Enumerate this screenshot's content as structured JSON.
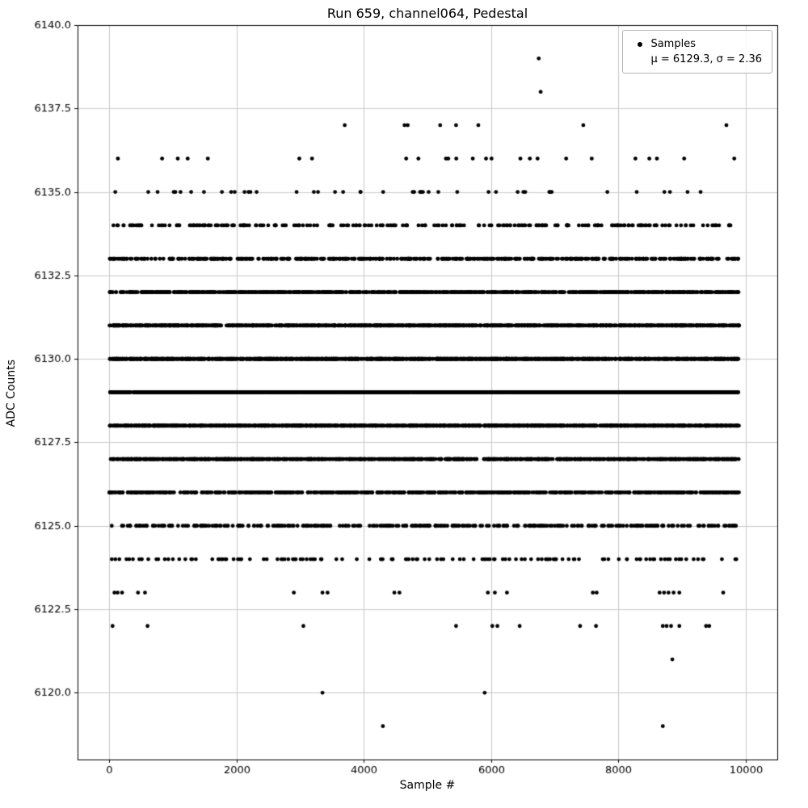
{
  "chart_data": {
    "type": "scatter",
    "title": "Run 659, channel064, Pedestal",
    "xlabel": "Sample #",
    "ylabel": "ADC Counts",
    "xlim": [
      -500,
      10500
    ],
    "ylim": [
      6118,
      6140
    ],
    "xticks": [
      0,
      2000,
      4000,
      6000,
      8000,
      10000
    ],
    "xticklabels": [
      "0",
      "2000",
      "4000",
      "6000",
      "8000",
      "10000"
    ],
    "yticks": [
      6120.0,
      6122.5,
      6125.0,
      6127.5,
      6130.0,
      6132.5,
      6135.0,
      6137.5,
      6140.0
    ],
    "yticklabels": [
      "6120.0",
      "6122.5",
      "6125.0",
      "6127.5",
      "6130.0",
      "6132.5",
      "6135.0",
      "6137.5",
      "6140.0"
    ],
    "grid": true,
    "grid_color": "#c8c8c8",
    "background": "#ffffff",
    "marker_color": "#000000",
    "x_range": [
      0,
      9899
    ],
    "stats": {
      "mu": 6129.3,
      "sigma": 2.36
    },
    "legend": {
      "samples_label": "Samples",
      "stats_label": "μ = 6129.3, σ = 2.36",
      "position": "upper right",
      "border_color": "#b3b3b3"
    },
    "levels": [
      {
        "adc": 6119,
        "x": [
          4300,
          8700
        ]
      },
      {
        "adc": 6120,
        "x": [
          3350,
          5900
        ]
      },
      {
        "adc": 6121,
        "x": [
          8850
        ]
      },
      {
        "adc": 6122,
        "x": [
          50,
          600,
          3050,
          5450,
          6020,
          6100,
          6450,
          7400,
          7650,
          8700,
          8760,
          8830,
          8960,
          9380,
          9430
        ]
      },
      {
        "adc": 6123,
        "x": [
          80,
          130,
          200,
          450,
          560,
          2900,
          3350,
          3430,
          4480,
          4560,
          5950,
          6060,
          6250,
          7600,
          7660,
          8650,
          8720,
          8790,
          8870,
          8960,
          9650
        ]
      },
      {
        "adc": 6124,
        "count": 135
      },
      {
        "adc": 6125,
        "count": 320
      },
      {
        "adc": 6126,
        "count": 630
      },
      {
        "adc": 6127,
        "count": 1040
      },
      {
        "adc": 6128,
        "count": 1440
      },
      {
        "adc": 6129,
        "count": 1660
      },
      {
        "adc": 6130,
        "count": 1600
      },
      {
        "adc": 6131,
        "count": 1290
      },
      {
        "adc": 6132,
        "count": 870
      },
      {
        "adc": 6133,
        "count": 490
      },
      {
        "adc": 6134,
        "count": 230
      },
      {
        "adc": 6135,
        "count": 45
      },
      {
        "adc": 6136,
        "count": 25
      },
      {
        "adc": 6137,
        "x": [
          3700,
          4640,
          4690,
          5200,
          5450,
          5800,
          7450,
          9700
        ]
      },
      {
        "adc": 6138,
        "x": [
          6780
        ]
      },
      {
        "adc": 6139,
        "x": [
          6750
        ]
      }
    ]
  }
}
